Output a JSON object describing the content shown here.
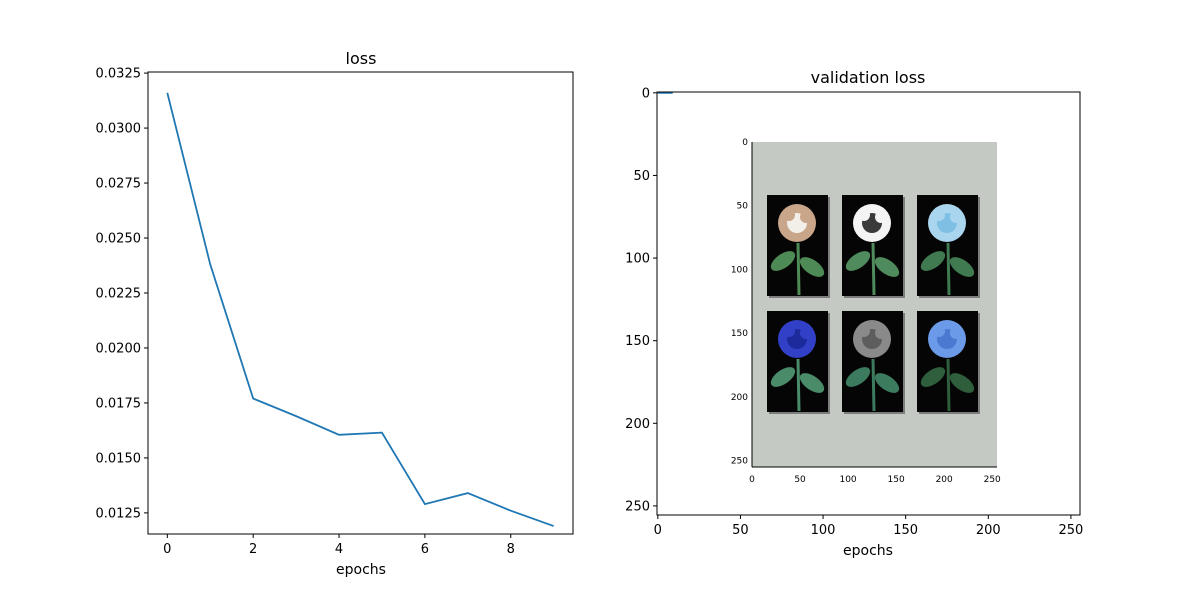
{
  "colors": {
    "line": "#1f77b4",
    "axes": "#000000",
    "background": "#ffffff"
  },
  "chart_data": [
    {
      "type": "line",
      "title": "loss",
      "xlabel": "epochs",
      "ylabel": "",
      "x": [
        0,
        1,
        2,
        3,
        4,
        5,
        6,
        7,
        8,
        9
      ],
      "series": [
        {
          "values": [
            0.0316,
            0.0238,
            0.0177,
            0.0169,
            0.01605,
            0.01615,
            0.0129,
            0.0134,
            0.0126,
            0.0119
          ]
        }
      ],
      "xlim": [
        -0.45,
        9.45
      ],
      "ylim": [
        0.01154,
        0.03255
      ],
      "xticks": [
        "0",
        "2",
        "4",
        "6",
        "8"
      ],
      "xtick_values": [
        0,
        2,
        4,
        6,
        8
      ],
      "yticks": [
        "0.0125",
        "0.0150",
        "0.0175",
        "0.0200",
        "0.0225",
        "0.0250",
        "0.0275",
        "0.0300",
        "0.0325"
      ],
      "ytick_values": [
        0.0125,
        0.015,
        0.0175,
        0.02,
        0.0225,
        0.025,
        0.0275,
        0.03,
        0.0325
      ],
      "grid": false,
      "legend": "none"
    },
    {
      "type": "line",
      "title": "validation loss",
      "xlabel": "epochs",
      "ylabel": "",
      "x": [
        0,
        9
      ],
      "series": [
        {
          "values": [
            0.0316,
            0.0119
          ]
        }
      ],
      "xlim": [
        -0.5,
        255.5
      ],
      "ylim": [
        255.5,
        -0.5
      ],
      "y_inverted": true,
      "xticks": [
        "0",
        "50",
        "100",
        "150",
        "200",
        "250"
      ],
      "xtick_values": [
        0,
        50,
        100,
        150,
        200,
        250
      ],
      "yticks": [
        "0",
        "50",
        "100",
        "150",
        "200",
        "250"
      ],
      "ytick_values": [
        0,
        50,
        100,
        150,
        200,
        250
      ],
      "grid": false,
      "legend": "none",
      "background_image": {
        "description": "inset image: gray panel with six flower photographs in a 2x3 grid",
        "xticks": [
          "0",
          "50",
          "100",
          "150",
          "200",
          "250"
        ],
        "yticks": [
          "0",
          "50",
          "100",
          "150",
          "200",
          "250"
        ],
        "panel_color": "#c5c9c4",
        "flowers": [
          {
            "name": "brown-white-flower",
            "petal": "#c9a58a",
            "petal2": "#f2efe9",
            "leaf": "#4e8a55"
          },
          {
            "name": "white-tulip-flower",
            "petal": "#f4f4f4",
            "petal2": "#3a3a3a",
            "leaf": "#4f8b5c"
          },
          {
            "name": "light-blue-hydrangea-flower",
            "petal": "#a9d6ee",
            "petal2": "#7fbfe3",
            "leaf": "#3f7a50"
          },
          {
            "name": "blue-rose-flower",
            "petal": "#3240c8",
            "petal2": "#1d2a9c",
            "leaf": "#4a8b6a"
          },
          {
            "name": "gray-hyacinth-flower",
            "petal": "#8a8a8a",
            "petal2": "#5d5d5d",
            "leaf": "#3d7b5e"
          },
          {
            "name": "blue-lily-flower",
            "petal": "#6b9be8",
            "petal2": "#4b78d0",
            "leaf": "#2f5e3c"
          }
        ]
      }
    }
  ]
}
